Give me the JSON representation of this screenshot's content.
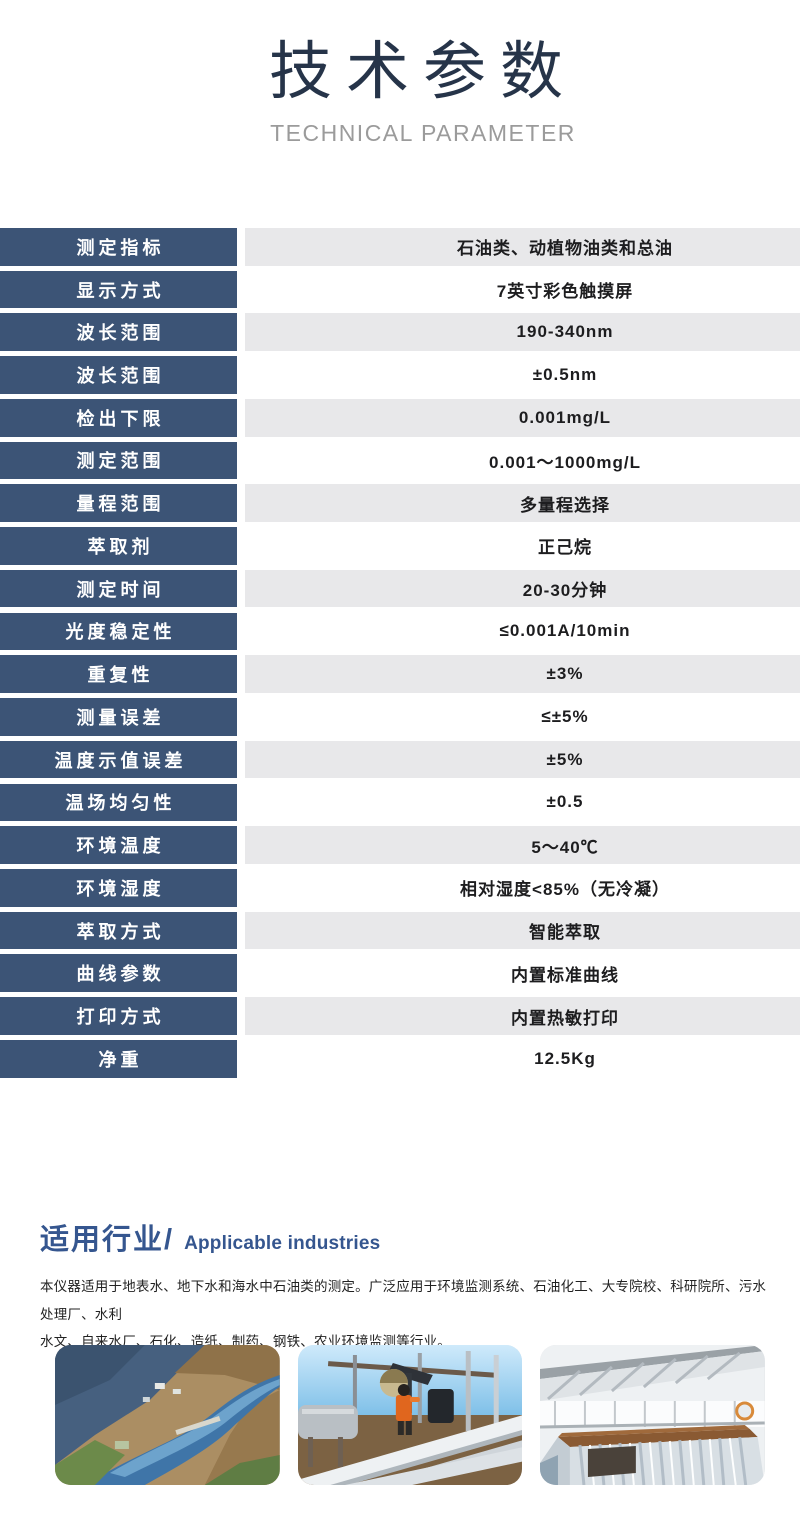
{
  "page": {
    "title": "技术参数",
    "subtitle": "TECHNICAL PARAMETER"
  },
  "table": {
    "rows": [
      {
        "label": "测定指标",
        "value": "石油类、动植物油类和总油"
      },
      {
        "label": "显示方式",
        "value": "7英寸彩色触摸屏"
      },
      {
        "label": "波长范围",
        "value": "190-340nm"
      },
      {
        "label": "波长范围",
        "value": "±0.5nm"
      },
      {
        "label": "检出下限",
        "value": "0.001mg/L"
      },
      {
        "label": "测定范围",
        "value": "0.001～1000mg/L"
      },
      {
        "label": "量程范围",
        "value": "多量程选择"
      },
      {
        "label": "萃取剂",
        "value": "正己烷"
      },
      {
        "label": "测定时间",
        "value": "20-30分钟"
      },
      {
        "label": "光度稳定性",
        "value": "≤0.001A/10min"
      },
      {
        "label": "重复性",
        "value": "±3%"
      },
      {
        "label": "测量误差",
        "value": "≤±5%"
      },
      {
        "label": "温度示值误差",
        "value": "±5%"
      },
      {
        "label": "温场均匀性",
        "value": "±0.5"
      },
      {
        "label": "环境温度",
        "value": "5～40℃"
      },
      {
        "label": "环境湿度",
        "value": "相对湿度<85%（无冷凝）"
      },
      {
        "label": "萃取方式",
        "value": "智能萃取"
      },
      {
        "label": "曲线参数",
        "value": "内置标准曲线"
      },
      {
        "label": "打印方式",
        "value": "内置热敏打印"
      },
      {
        "label": "净重",
        "value": "12.5Kg"
      }
    ]
  },
  "industries": {
    "heading_cn": "适用行业/",
    "heading_en": "Applicable industries",
    "description_lines": [
      "本仪器适用于地表水、地下水和海水中石油类的测定。广泛应用于环境监测系统、石油化工、大专院校、科研院所、污水处理厂、水利",
      "水文、自来水厂、石化、造纸、制药、钢铁、农业环境监测等行业。"
    ]
  },
  "photos": [
    {
      "name": "aerial-reservoir-photo"
    },
    {
      "name": "oil-field-photo"
    },
    {
      "name": "treatment-plant-photo"
    }
  ],
  "colors": {
    "label_navy": "#3c5476",
    "row_gray": "#e8e8ea",
    "title_navy": "#263449",
    "subtitle_gray": "#9b9b9b",
    "industries_blue": "#35568f"
  }
}
